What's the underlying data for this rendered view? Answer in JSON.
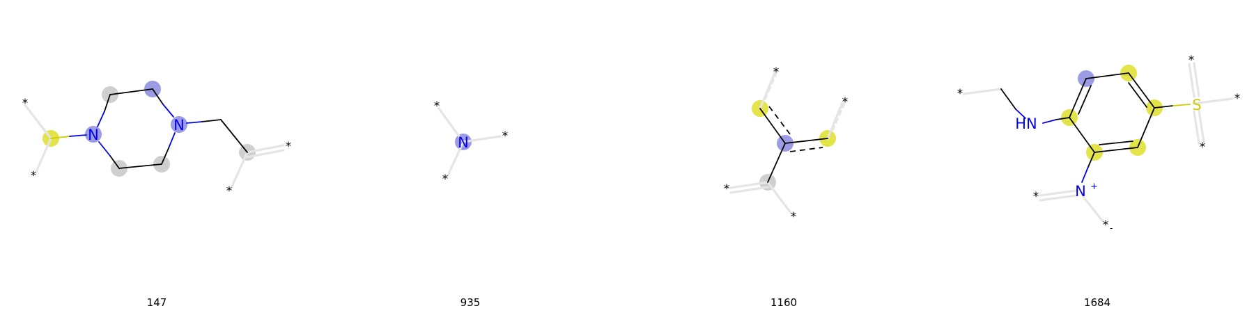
{
  "molecules": [
    {
      "caption": "147",
      "labels": {
        "n1": "N",
        "n2": "N"
      },
      "stars": [
        "*",
        "*",
        "*",
        "*"
      ]
    },
    {
      "caption": "935",
      "labels": {
        "n": "N"
      },
      "stars": [
        "*",
        "*",
        "*"
      ]
    },
    {
      "caption": "1160",
      "stars": [
        "*",
        "*",
        "*",
        "*"
      ]
    },
    {
      "caption": "1684",
      "labels": {
        "hn": "HN",
        "nplus": "N",
        "nplus_charge": "+",
        "s": "S"
      },
      "stars": [
        "*",
        "*",
        "*",
        "*",
        "*"
      ],
      "minus": "-"
    }
  ],
  "colors": {
    "carbon_bond": "#000000",
    "nitrogen": "#0000ee",
    "sulfur": "#cccc00",
    "highlight_yellow": "#e3e34a",
    "highlight_blue": "#9c9ce4",
    "highlight_grey": "#cfcfcf",
    "attachment_bond": "#e5e5e5"
  }
}
